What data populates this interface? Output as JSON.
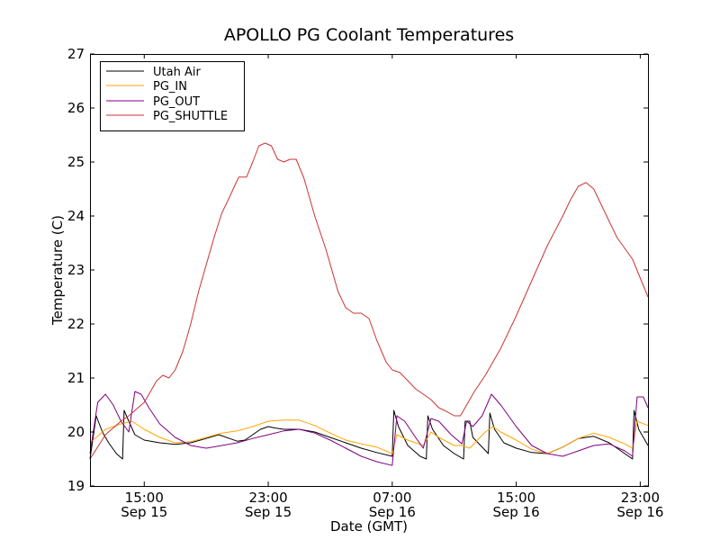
{
  "chart_data": {
    "type": "line",
    "title": "APOLLO PG Coolant Temperatures",
    "xlabel": "Date (GMT)",
    "ylabel": "Temperature (C)",
    "xlim": [
      11.5,
      47.5
    ],
    "ylim": [
      19,
      27
    ],
    "yticks": [
      19,
      20,
      21,
      22,
      23,
      24,
      25,
      26,
      27
    ],
    "xticks": [
      {
        "x": 15,
        "time": "15:00",
        "date": "Sep 15"
      },
      {
        "x": 23,
        "time": "23:00",
        "date": "Sep 15"
      },
      {
        "x": 31,
        "time": "07:00",
        "date": "Sep 16"
      },
      {
        "x": 39,
        "time": "15:00",
        "date": "Sep 16"
      },
      {
        "x": 47,
        "time": "23:00",
        "date": "Sep 16"
      }
    ],
    "legend_position": "top-left",
    "series": [
      {
        "name": "Utah Air",
        "color": "#000000",
        "points": [
          [
            11.5,
            19.5
          ],
          [
            11.9,
            20.3
          ],
          [
            12.3,
            20.0
          ],
          [
            12.7,
            19.8
          ],
          [
            13.2,
            19.6
          ],
          [
            13.6,
            19.5
          ],
          [
            13.7,
            20.4
          ],
          [
            14.0,
            20.2
          ],
          [
            14.4,
            19.95
          ],
          [
            15.0,
            19.85
          ],
          [
            16,
            19.8
          ],
          [
            17,
            19.77
          ],
          [
            18,
            19.8
          ],
          [
            19,
            19.88
          ],
          [
            19.8,
            19.95
          ],
          [
            20.5,
            19.88
          ],
          [
            21,
            19.83
          ],
          [
            21.5,
            19.85
          ],
          [
            22,
            19.95
          ],
          [
            22.5,
            20.05
          ],
          [
            23,
            20.1
          ],
          [
            23.5,
            20.07
          ],
          [
            24,
            20.05
          ],
          [
            25,
            20.05
          ],
          [
            26,
            20.0
          ],
          [
            27,
            19.9
          ],
          [
            28,
            19.8
          ],
          [
            29,
            19.7
          ],
          [
            30,
            19.62
          ],
          [
            31,
            19.55
          ],
          [
            31.1,
            20.4
          ],
          [
            31.4,
            20.1
          ],
          [
            32,
            19.75
          ],
          [
            32.8,
            19.55
          ],
          [
            33.2,
            19.5
          ],
          [
            33.3,
            20.3
          ],
          [
            33.6,
            20.05
          ],
          [
            34.3,
            19.75
          ],
          [
            35.0,
            19.6
          ],
          [
            35.6,
            19.5
          ],
          [
            35.7,
            20.2
          ],
          [
            36.0,
            20.2
          ],
          [
            36.2,
            19.9
          ],
          [
            37.2,
            19.6
          ],
          [
            37.3,
            20.35
          ],
          [
            37.6,
            20.05
          ],
          [
            38.2,
            19.8
          ],
          [
            39,
            19.7
          ],
          [
            40,
            19.62
          ],
          [
            41,
            19.6
          ],
          [
            42,
            19.72
          ],
          [
            43,
            19.88
          ],
          [
            44,
            19.92
          ],
          [
            45,
            19.8
          ],
          [
            46,
            19.6
          ],
          [
            46.5,
            19.5
          ],
          [
            46.6,
            20.4
          ],
          [
            46.9,
            20.05
          ],
          [
            47.5,
            19.75
          ]
        ]
      },
      {
        "name": "PG_IN",
        "color": "#ffa500",
        "points": [
          [
            11.5,
            19.8
          ],
          [
            12.5,
            20.05
          ],
          [
            13.5,
            20.15
          ],
          [
            14.2,
            20.2
          ],
          [
            15,
            20.05
          ],
          [
            16,
            19.9
          ],
          [
            17,
            19.8
          ],
          [
            18,
            19.82
          ],
          [
            19,
            19.9
          ],
          [
            20,
            19.98
          ],
          [
            21,
            20.02
          ],
          [
            22,
            20.1
          ],
          [
            23,
            20.2
          ],
          [
            24,
            20.22
          ],
          [
            25,
            20.22
          ],
          [
            26,
            20.12
          ],
          [
            27,
            19.98
          ],
          [
            28,
            19.85
          ],
          [
            29,
            19.78
          ],
          [
            30,
            19.72
          ],
          [
            31,
            19.6
          ],
          [
            31.3,
            19.95
          ],
          [
            32,
            19.85
          ],
          [
            33,
            19.75
          ],
          [
            33.5,
            20.0
          ],
          [
            34,
            19.9
          ],
          [
            35,
            19.75
          ],
          [
            35.5,
            19.75
          ],
          [
            36,
            19.7
          ],
          [
            37,
            20.0
          ],
          [
            37.5,
            20.1
          ],
          [
            38,
            20.0
          ],
          [
            39,
            19.85
          ],
          [
            40,
            19.68
          ],
          [
            41,
            19.6
          ],
          [
            42,
            19.72
          ],
          [
            43,
            19.88
          ],
          [
            44,
            19.98
          ],
          [
            45,
            19.9
          ],
          [
            46,
            19.78
          ],
          [
            46.5,
            19.7
          ],
          [
            46.8,
            20.2
          ],
          [
            47.5,
            20.12
          ]
        ]
      },
      {
        "name": "PG_OUT",
        "color": "#800080",
        "points": [
          [
            11.5,
            19.6
          ],
          [
            12,
            20.55
          ],
          [
            12.5,
            20.7
          ],
          [
            13.0,
            20.5
          ],
          [
            13.5,
            20.2
          ],
          [
            14.0,
            20.0
          ],
          [
            14.4,
            20.75
          ],
          [
            14.8,
            20.7
          ],
          [
            15.3,
            20.45
          ],
          [
            16,
            20.15
          ],
          [
            17,
            19.9
          ],
          [
            18,
            19.75
          ],
          [
            19,
            19.7
          ],
          [
            20,
            19.75
          ],
          [
            21,
            19.8
          ],
          [
            22,
            19.88
          ],
          [
            23,
            19.95
          ],
          [
            24,
            20.02
          ],
          [
            25,
            20.05
          ],
          [
            26,
            19.98
          ],
          [
            27,
            19.85
          ],
          [
            28,
            19.7
          ],
          [
            29,
            19.55
          ],
          [
            30,
            19.45
          ],
          [
            31,
            19.38
          ],
          [
            31.3,
            20.3
          ],
          [
            31.8,
            20.2
          ],
          [
            32.5,
            19.9
          ],
          [
            33,
            19.7
          ],
          [
            33.5,
            20.25
          ],
          [
            34,
            20.2
          ],
          [
            34.8,
            19.95
          ],
          [
            35.5,
            19.78
          ],
          [
            35.8,
            20.2
          ],
          [
            36.2,
            20.1
          ],
          [
            36.8,
            20.3
          ],
          [
            37.4,
            20.7
          ],
          [
            38,
            20.5
          ],
          [
            39,
            20.1
          ],
          [
            40,
            19.75
          ],
          [
            41,
            19.6
          ],
          [
            42,
            19.55
          ],
          [
            43,
            19.65
          ],
          [
            44,
            19.75
          ],
          [
            45,
            19.78
          ],
          [
            46,
            19.65
          ],
          [
            46.5,
            19.55
          ],
          [
            46.8,
            20.65
          ],
          [
            47.2,
            20.65
          ],
          [
            47.5,
            20.45
          ]
        ]
      },
      {
        "name": "PG_SHUTTLE",
        "color": "#cd3333",
        "points": [
          [
            11.5,
            19.5
          ],
          [
            12.5,
            19.95
          ],
          [
            13.5,
            20.2
          ],
          [
            14.0,
            20.3
          ],
          [
            15,
            20.55
          ],
          [
            15.8,
            20.95
          ],
          [
            16.2,
            21.05
          ],
          [
            16.6,
            21.0
          ],
          [
            17,
            21.15
          ],
          [
            17.5,
            21.5
          ],
          [
            18,
            22.0
          ],
          [
            18.5,
            22.6
          ],
          [
            19,
            23.1
          ],
          [
            19.5,
            23.6
          ],
          [
            20,
            24.05
          ],
          [
            20.5,
            24.35
          ],
          [
            20.9,
            24.6
          ],
          [
            21.1,
            24.72
          ],
          [
            21.6,
            24.72
          ],
          [
            22,
            25.0
          ],
          [
            22.4,
            25.3
          ],
          [
            22.8,
            25.35
          ],
          [
            23.2,
            25.3
          ],
          [
            23.6,
            25.05
          ],
          [
            24,
            25.0
          ],
          [
            24.4,
            25.05
          ],
          [
            24.8,
            25.05
          ],
          [
            25.3,
            24.7
          ],
          [
            26,
            24.0
          ],
          [
            26.7,
            23.4
          ],
          [
            27.5,
            22.6
          ],
          [
            28,
            22.3
          ],
          [
            28.5,
            22.2
          ],
          [
            29,
            22.2
          ],
          [
            29.5,
            22.1
          ],
          [
            30,
            21.7
          ],
          [
            30.6,
            21.3
          ],
          [
            31,
            21.15
          ],
          [
            31.5,
            21.1
          ],
          [
            32,
            20.95
          ],
          [
            32.5,
            20.8
          ],
          [
            33,
            20.7
          ],
          [
            33.5,
            20.6
          ],
          [
            34,
            20.45
          ],
          [
            34.5,
            20.38
          ],
          [
            35,
            20.3
          ],
          [
            35.4,
            20.3
          ],
          [
            35.8,
            20.5
          ],
          [
            36.3,
            20.75
          ],
          [
            37,
            21.05
          ],
          [
            38,
            21.55
          ],
          [
            39,
            22.15
          ],
          [
            40,
            22.8
          ],
          [
            41,
            23.45
          ],
          [
            42,
            24.0
          ],
          [
            42.5,
            24.3
          ],
          [
            43,
            24.55
          ],
          [
            43.5,
            24.62
          ],
          [
            44,
            24.5
          ],
          [
            44.5,
            24.2
          ],
          [
            45,
            23.9
          ],
          [
            45.5,
            23.6
          ],
          [
            46,
            23.4
          ],
          [
            46.5,
            23.2
          ],
          [
            47,
            22.85
          ],
          [
            47.5,
            22.5
          ]
        ]
      }
    ]
  }
}
